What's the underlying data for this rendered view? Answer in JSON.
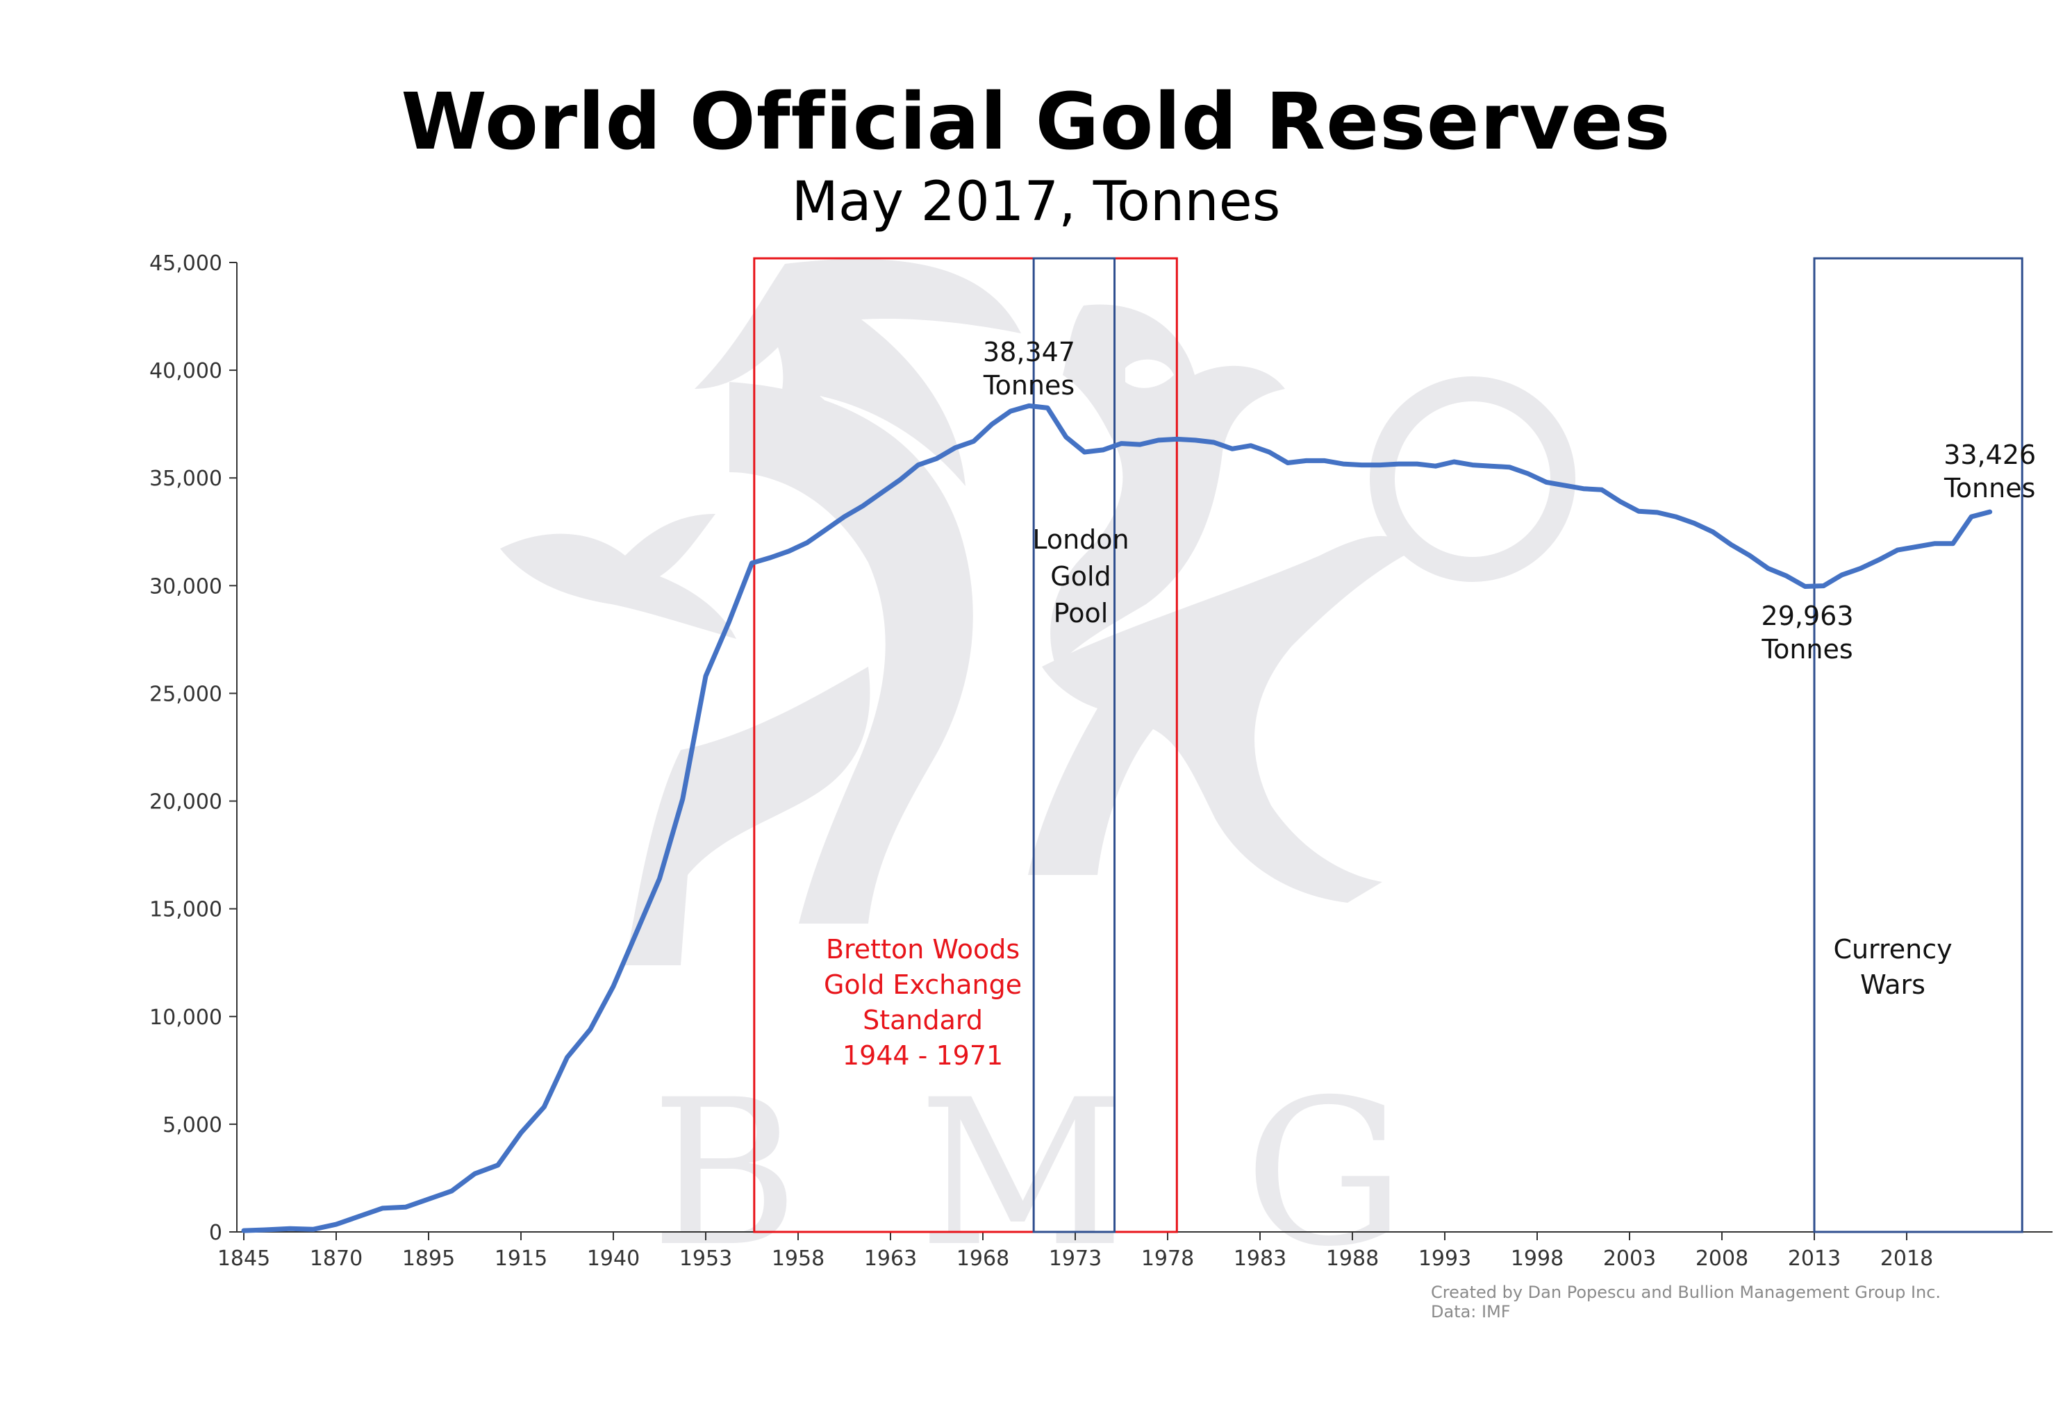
{
  "title": "World Official Gold Reserves",
  "subtitle": "May 2017, Tonnes",
  "credit": {
    "line1": "Created by Dan Popescu and Bullion Management Group Inc.",
    "line2": "Data: IMF"
  },
  "watermark": {
    "text": "B M G"
  },
  "colors": {
    "line": "#4472c4",
    "bretton": "#e8141a",
    "box": "#2f4f8f",
    "axis": "#333333",
    "watermark": "#e9e9ec"
  },
  "chart_data": {
    "type": "line",
    "title": "World Official Gold Reserves",
    "subtitle": "May 2017, Tonnes",
    "xlabel": "",
    "ylabel": "",
    "ylim": [
      0,
      45000
    ],
    "yticks": [
      "0",
      "5,000",
      "10,000",
      "15,000",
      "20,000",
      "25,000",
      "30,000",
      "35,000",
      "40,000",
      "45,000"
    ],
    "xticks": [
      "1845",
      "1870",
      "1895",
      "1915",
      "1940",
      "1953",
      "1958",
      "1963",
      "1968",
      "1973",
      "1978",
      "1983",
      "1988",
      "1993",
      "1998",
      "2003",
      "2008",
      "2013",
      "2018"
    ],
    "grid": false,
    "series": [
      {
        "values": [
          [
            0,
            60
          ],
          [
            0.5,
            100
          ],
          [
            1,
            150
          ],
          [
            1.5,
            120
          ],
          [
            2,
            350
          ],
          [
            3,
            1100
          ],
          [
            3.5,
            1150
          ],
          [
            4.5,
            1900
          ],
          [
            5,
            2700
          ],
          [
            5.5,
            3100
          ],
          [
            6,
            4600
          ],
          [
            6.5,
            5800
          ],
          [
            7,
            8100
          ],
          [
            7.5,
            9400
          ],
          [
            8,
            11400
          ],
          [
            8.5,
            13900
          ],
          [
            9,
            16400
          ],
          [
            9.5,
            20100
          ],
          [
            10,
            25800
          ],
          [
            10.5,
            28300
          ],
          [
            11,
            31050
          ],
          [
            11.4,
            31300
          ],
          [
            11.8,
            31600
          ],
          [
            12.2,
            32000
          ],
          [
            12.6,
            32600
          ],
          [
            13,
            33200
          ],
          [
            13.4,
            33700
          ],
          [
            13.8,
            34300
          ],
          [
            14.2,
            34900
          ],
          [
            14.6,
            35600
          ],
          [
            15,
            35900
          ],
          [
            15.4,
            36400
          ],
          [
            15.8,
            36700
          ],
          [
            16.2,
            37500
          ],
          [
            16.6,
            38100
          ],
          [
            17,
            38347
          ],
          [
            17.4,
            38250
          ],
          [
            17.8,
            36900
          ],
          [
            18.2,
            36200
          ],
          [
            18.6,
            36300
          ],
          [
            19,
            36600
          ],
          [
            19.4,
            36550
          ],
          [
            19.8,
            36750
          ],
          [
            20.2,
            36800
          ],
          [
            20.6,
            36750
          ],
          [
            21,
            36650
          ],
          [
            21.4,
            36350
          ],
          [
            21.8,
            36500
          ],
          [
            22.2,
            36200
          ],
          [
            22.6,
            35700
          ],
          [
            23,
            35800
          ],
          [
            23.4,
            35800
          ],
          [
            23.8,
            35650
          ],
          [
            24.2,
            35600
          ],
          [
            24.6,
            35600
          ],
          [
            25,
            35650
          ],
          [
            25.4,
            35650
          ],
          [
            25.8,
            35550
          ],
          [
            26.2,
            35750
          ],
          [
            26.6,
            35600
          ],
          [
            27,
            35550
          ],
          [
            27.4,
            35500
          ],
          [
            27.8,
            35200
          ],
          [
            28.2,
            34800
          ],
          [
            28.6,
            34650
          ],
          [
            29,
            34500
          ],
          [
            29.4,
            34450
          ],
          [
            29.8,
            33900
          ],
          [
            30.2,
            33450
          ],
          [
            30.6,
            33400
          ],
          [
            31,
            33200
          ],
          [
            31.4,
            32900
          ],
          [
            31.8,
            32500
          ],
          [
            32.2,
            31900
          ],
          [
            32.6,
            31400
          ],
          [
            33,
            30800
          ],
          [
            33.4,
            30450
          ],
          [
            33.8,
            29963
          ],
          [
            34.2,
            29990
          ],
          [
            34.6,
            30500
          ],
          [
            35,
            30800
          ],
          [
            35.4,
            31200
          ],
          [
            35.8,
            31650
          ],
          [
            36.2,
            31800
          ],
          [
            36.6,
            31950
          ],
          [
            37,
            31950
          ],
          [
            37.4,
            33200
          ],
          [
            37.8,
            33426
          ]
        ]
      }
    ],
    "annotations": [
      {
        "id": "peak",
        "lines": [
          "38,347",
          "Tonnes"
        ]
      },
      {
        "id": "low",
        "lines": [
          "29,963",
          "Tonnes"
        ]
      },
      {
        "id": "latest",
        "lines": [
          "33,426",
          "Tonnes"
        ]
      }
    ],
    "regions": [
      {
        "id": "bretton",
        "lines": [
          "Bretton Woods",
          "Gold Exchange",
          "Standard",
          "1944 - 1971"
        ]
      },
      {
        "id": "london",
        "lines": [
          "London",
          "Gold",
          "Pool"
        ]
      },
      {
        "id": "currency",
        "lines": [
          "Currency",
          "Wars"
        ]
      }
    ]
  }
}
